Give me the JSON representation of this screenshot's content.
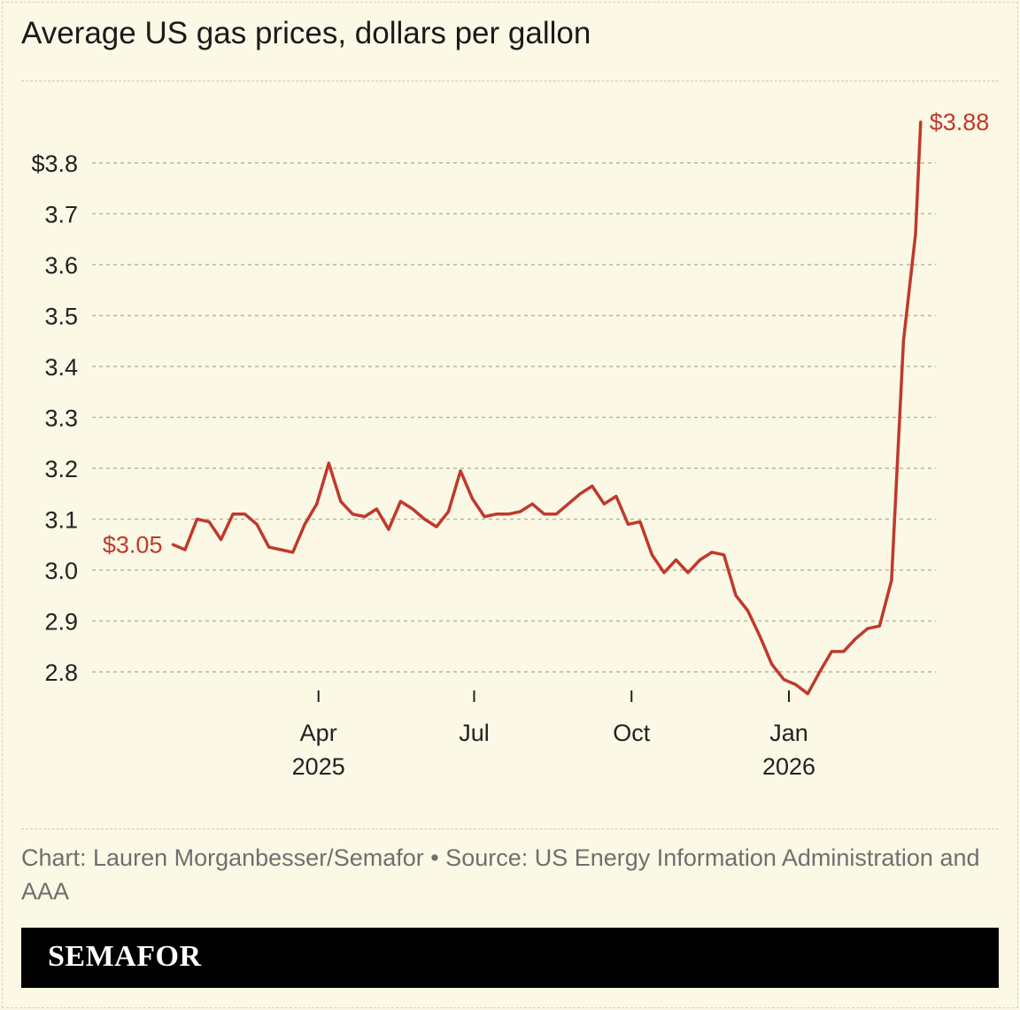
{
  "title": "Average US gas prices, dollars per gallon",
  "credit": "Chart: Lauren Morganbesser/Semafor • Source: US Energy Information Administration and AAA",
  "brand": "SEMAFOR",
  "colors": {
    "line": "#c0392b",
    "background": "#fbf8e5",
    "grid": "#b8b6a6"
  },
  "chart_data": {
    "type": "line",
    "title": "Average US gas prices, dollars per gallon",
    "xlabel": "",
    "ylabel": "",
    "ylim": [
      2.75,
      3.9
    ],
    "grid": true,
    "y_ticks": [
      {
        "value": 3.8,
        "label": "$3.8"
      },
      {
        "value": 3.7,
        "label": "3.7"
      },
      {
        "value": 3.6,
        "label": "3.6"
      },
      {
        "value": 3.5,
        "label": "3.5"
      },
      {
        "value": 3.4,
        "label": "3.4"
      },
      {
        "value": 3.3,
        "label": "3.3"
      },
      {
        "value": 3.2,
        "label": "3.2"
      },
      {
        "value": 3.1,
        "label": "3.1"
      },
      {
        "value": 3.0,
        "label": "3.0"
      },
      {
        "value": 2.9,
        "label": "2.9"
      },
      {
        "value": 2.8,
        "label": "2.8"
      }
    ],
    "x_ticks": [
      {
        "date": "2025-04-01",
        "label": "Apr",
        "sublabel": "2025"
      },
      {
        "date": "2025-07-01",
        "label": "Jul",
        "sublabel": ""
      },
      {
        "date": "2025-10-01",
        "label": "Oct",
        "sublabel": ""
      },
      {
        "date": "2026-01-01",
        "label": "Jan",
        "sublabel": "2026"
      }
    ],
    "annotations": {
      "start": "$3.05",
      "end": "$3.88"
    },
    "x": [
      "2025-01-06",
      "2025-01-13",
      "2025-01-20",
      "2025-01-27",
      "2025-02-03",
      "2025-02-10",
      "2025-02-17",
      "2025-02-24",
      "2025-03-03",
      "2025-03-10",
      "2025-03-17",
      "2025-03-24",
      "2025-03-31",
      "2025-04-07",
      "2025-04-14",
      "2025-04-21",
      "2025-04-28",
      "2025-05-05",
      "2025-05-12",
      "2025-05-19",
      "2025-05-26",
      "2025-06-02",
      "2025-06-09",
      "2025-06-16",
      "2025-06-23",
      "2025-06-30",
      "2025-07-07",
      "2025-07-14",
      "2025-07-21",
      "2025-07-28",
      "2025-08-04",
      "2025-08-11",
      "2025-08-18",
      "2025-08-25",
      "2025-09-01",
      "2025-09-08",
      "2025-09-15",
      "2025-09-22",
      "2025-09-29",
      "2025-10-06",
      "2025-10-13",
      "2025-10-20",
      "2025-10-27",
      "2025-11-03",
      "2025-11-10",
      "2025-11-17",
      "2025-11-24",
      "2025-12-01",
      "2025-12-08",
      "2025-12-15",
      "2025-12-22",
      "2025-12-29",
      "2026-01-05",
      "2026-01-12",
      "2026-01-19",
      "2026-01-26",
      "2026-02-02",
      "2026-02-09",
      "2026-02-16",
      "2026-02-23",
      "2026-03-02",
      "2026-03-09",
      "2026-03-16",
      "2026-03-19"
    ],
    "values": [
      3.05,
      3.04,
      3.1,
      3.095,
      3.06,
      3.11,
      3.11,
      3.09,
      3.045,
      3.04,
      3.035,
      3.09,
      3.13,
      3.21,
      3.135,
      3.11,
      3.105,
      3.12,
      3.08,
      3.135,
      3.12,
      3.1,
      3.085,
      3.115,
      3.195,
      3.14,
      3.105,
      3.11,
      3.11,
      3.115,
      3.13,
      3.11,
      3.11,
      3.13,
      3.15,
      3.165,
      3.13,
      3.145,
      3.09,
      3.095,
      3.03,
      2.995,
      3.02,
      2.995,
      3.02,
      3.035,
      3.03,
      2.95,
      2.92,
      2.87,
      2.815,
      2.785,
      2.775,
      2.757,
      2.8,
      2.84,
      2.84,
      2.865,
      2.885,
      2.89,
      2.98,
      3.45,
      3.66,
      3.88
    ]
  }
}
